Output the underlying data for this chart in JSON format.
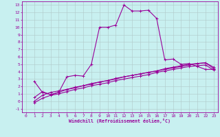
{
  "bg_color": "#c8f0f0",
  "line_color": "#990099",
  "grid_color": "#b0c8c8",
  "xlabel": "Windchill (Refroidissement éolien,°C)",
  "xlim": [
    -0.5,
    23.5
  ],
  "ylim": [
    -1.5,
    13.5
  ],
  "xticks": [
    0,
    1,
    2,
    3,
    4,
    5,
    6,
    7,
    8,
    9,
    10,
    11,
    12,
    13,
    14,
    15,
    16,
    17,
    18,
    19,
    20,
    21,
    22,
    23
  ],
  "yticks": [
    -1,
    0,
    1,
    2,
    3,
    4,
    5,
    6,
    7,
    8,
    9,
    10,
    11,
    12,
    13
  ],
  "curve1_x": [
    1,
    2,
    3,
    4,
    5,
    6,
    7,
    8,
    9,
    10,
    11,
    12,
    13,
    14,
    15,
    16,
    17,
    18,
    19,
    20,
    21,
    22,
    23
  ],
  "curve1_y": [
    2.7,
    1.2,
    0.9,
    1.2,
    3.3,
    3.5,
    3.4,
    5.0,
    10.0,
    10.0,
    10.3,
    13.0,
    12.2,
    12.2,
    12.3,
    11.2,
    5.6,
    5.7,
    5.0,
    5.1,
    4.7,
    4.3,
    4.3
  ],
  "curve2_x": [
    1,
    2,
    3,
    4,
    5,
    6,
    7,
    8,
    9,
    10,
    11,
    12,
    13,
    14,
    15,
    16,
    17,
    18,
    19,
    20,
    21,
    22,
    23
  ],
  "curve2_y": [
    0.5,
    1.3,
    0.9,
    1.2,
    1.6,
    1.8,
    2.1,
    2.3,
    2.6,
    2.8,
    3.0,
    3.3,
    3.5,
    3.7,
    3.9,
    4.1,
    4.3,
    4.5,
    4.7,
    4.9,
    5.1,
    5.2,
    4.6
  ],
  "curve3_x": [
    1,
    2,
    3,
    4,
    5,
    6,
    7,
    8,
    9,
    10,
    11,
    12,
    13,
    14,
    15,
    16,
    17,
    18,
    19,
    20,
    21,
    22,
    23
  ],
  "curve3_y": [
    0.0,
    0.8,
    1.2,
    1.4,
    1.6,
    1.9,
    2.1,
    2.4,
    2.6,
    2.8,
    3.1,
    3.3,
    3.5,
    3.7,
    3.9,
    4.1,
    4.4,
    4.6,
    4.8,
    5.0,
    5.1,
    5.2,
    4.4
  ],
  "curve4_x": [
    1,
    2,
    3,
    4,
    5,
    6,
    7,
    8,
    9,
    10,
    11,
    12,
    13,
    14,
    15,
    16,
    17,
    18,
    19,
    20,
    21,
    22,
    23
  ],
  "curve4_y": [
    -0.2,
    0.4,
    0.8,
    1.0,
    1.3,
    1.6,
    1.8,
    2.1,
    2.3,
    2.5,
    2.8,
    3.0,
    3.2,
    3.4,
    3.6,
    3.9,
    4.1,
    4.3,
    4.5,
    4.7,
    4.8,
    4.9,
    4.2
  ]
}
